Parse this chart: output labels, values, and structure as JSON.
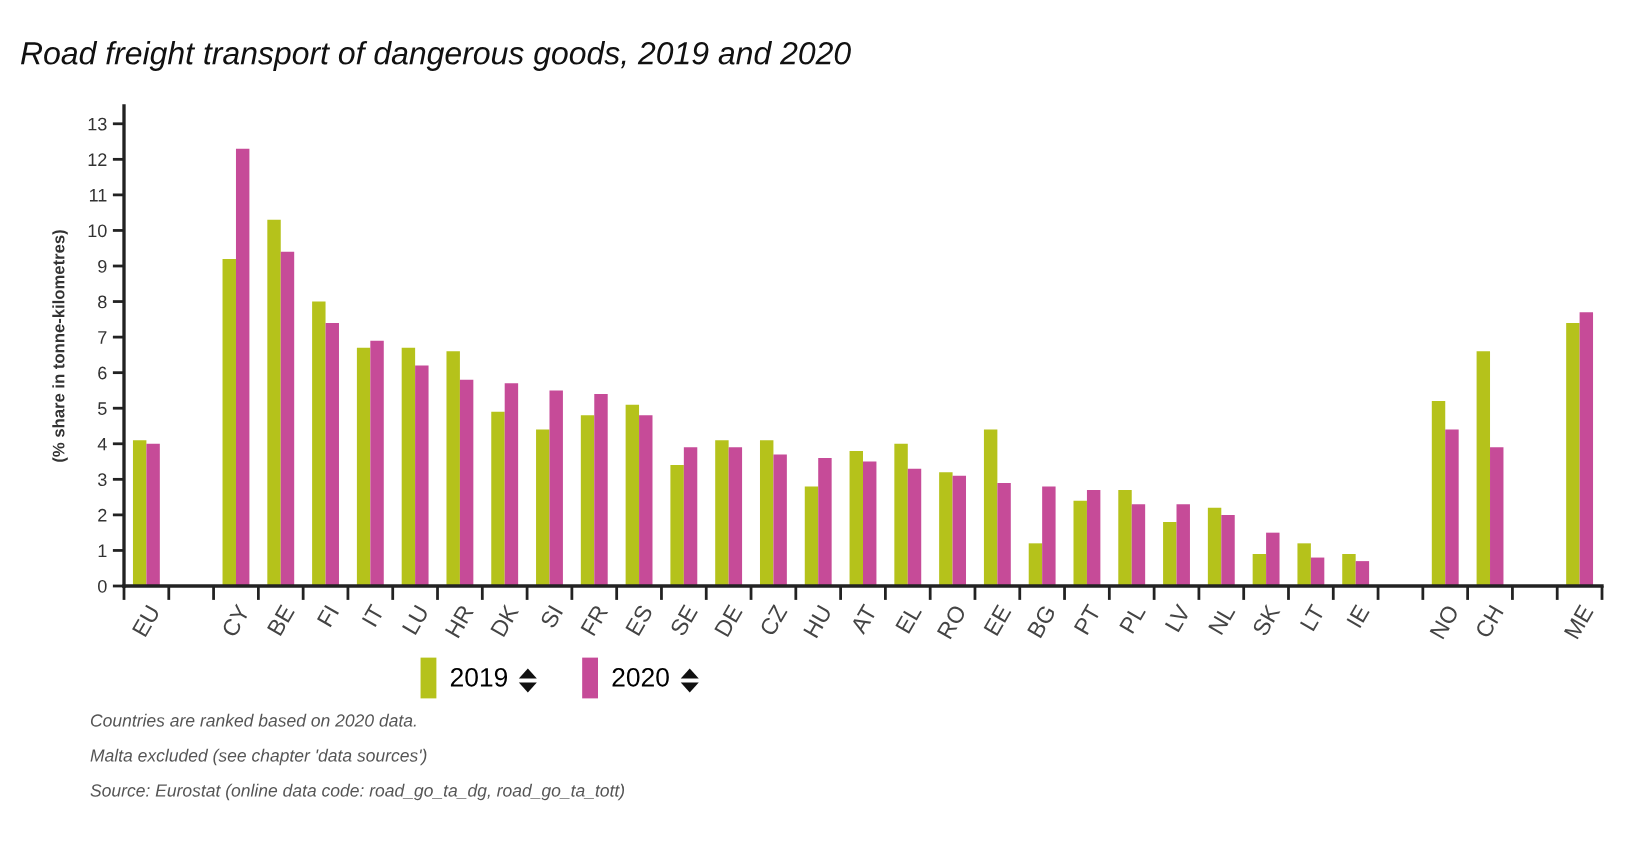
{
  "chart_data": {
    "type": "bar",
    "title": "Road freight transport of dangerous goods, 2019 and 2020",
    "ylabel": "(% share in tonne-kilometres)",
    "categories": [
      "EU",
      null,
      "CY",
      "BE",
      "FI",
      "IT",
      "LU",
      "HR",
      "DK",
      "SI",
      "FR",
      "ES",
      "SE",
      "DE",
      "CZ",
      "HU",
      "AT",
      "EL",
      "RO",
      "EE",
      "BG",
      "PT",
      "PL",
      "LV",
      "NL",
      "SK",
      "LT",
      "IE",
      null,
      "NO",
      "CH",
      null,
      "ME"
    ],
    "series": [
      {
        "name": "2019",
        "color": "#b5c21b",
        "values": [
          4.1,
          null,
          9.2,
          10.3,
          8.0,
          6.7,
          6.7,
          6.6,
          4.9,
          4.4,
          4.8,
          5.1,
          3.4,
          4.1,
          4.1,
          2.8,
          3.8,
          4.0,
          3.2,
          4.4,
          1.2,
          2.4,
          2.7,
          1.8,
          2.2,
          0.9,
          1.2,
          0.9,
          null,
          5.2,
          6.6,
          null,
          7.4
        ]
      },
      {
        "name": "2020",
        "color": "#c64b98",
        "values": [
          4.0,
          null,
          12.3,
          9.4,
          7.4,
          6.9,
          6.2,
          5.8,
          5.7,
          5.5,
          5.4,
          4.8,
          3.9,
          3.9,
          3.7,
          3.6,
          3.5,
          3.3,
          3.1,
          2.9,
          2.8,
          2.7,
          2.3,
          2.3,
          2.0,
          1.5,
          0.8,
          0.7,
          null,
          4.4,
          3.9,
          null,
          7.7
        ]
      }
    ],
    "ylim": [
      0,
      13.5
    ],
    "yticks": [
      0,
      1,
      2,
      3,
      4,
      5,
      6,
      7,
      8,
      9,
      10,
      11,
      12,
      13
    ],
    "legend": "bottom",
    "annotations": [
      "Countries are ranked based on 2020 data.",
      "Malta excluded (see chapter 'data sources')",
      "Source: Eurostat (online data code: road_go_ta_dg, road_go_ta_tott)"
    ]
  }
}
